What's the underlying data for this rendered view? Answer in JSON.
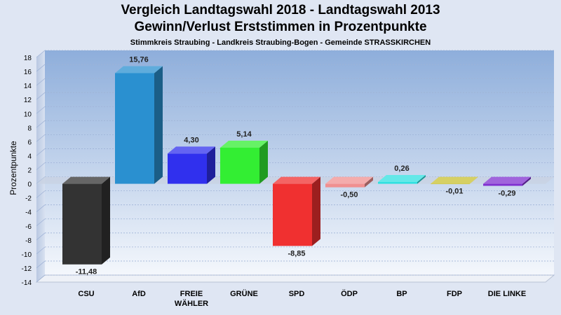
{
  "chart_data": {
    "type": "bar",
    "title": "Vergleich Landtagswahl 2018 - Landtagswahl 2013",
    "subtitle": "Gewinn/Verlust Erststimmen in Prozentpunkte",
    "caption": "Stimmkreis Straubing - Landkreis Straubing-Bogen - Gemeinde STRASSKIRCHEN",
    "ylabel": "Prozentpunkte",
    "ylim": [
      -14,
      18
    ],
    "yticks": [
      18,
      16,
      14,
      12,
      10,
      8,
      6,
      4,
      2,
      0,
      -2,
      -4,
      -6,
      -8,
      -10,
      -12,
      -14
    ],
    "categories": [
      "CSU",
      "AfD",
      "FREIE WÄHLER",
      "GRÜNE",
      "SPD",
      "ÖDP",
      "BP",
      "FDP",
      "DIE LINKE"
    ],
    "category_lines": [
      [
        "CSU"
      ],
      [
        "AfD"
      ],
      [
        "FREIE",
        "WÄHLER"
      ],
      [
        "GRÜNE"
      ],
      [
        "SPD"
      ],
      [
        "ÖDP"
      ],
      [
        "BP"
      ],
      [
        "FDP"
      ],
      [
        "DIE LINKE"
      ]
    ],
    "values": [
      -11.48,
      15.76,
      4.3,
      5.14,
      -8.85,
      -0.5,
      0.26,
      -0.01,
      -0.29
    ],
    "value_labels": [
      "-11,48",
      "15,76",
      "4,30",
      "5,14",
      "-8,85",
      "-0,50",
      "0,26",
      "-0,01",
      "-0,29"
    ],
    "colors": [
      "#333333",
      "#2a90d0",
      "#3030ee",
      "#33ee33",
      "#f03030",
      "#f09090",
      "#30e0e0",
      "#c8c030",
      "#8030d0"
    ],
    "grid": true,
    "legend": "none"
  }
}
